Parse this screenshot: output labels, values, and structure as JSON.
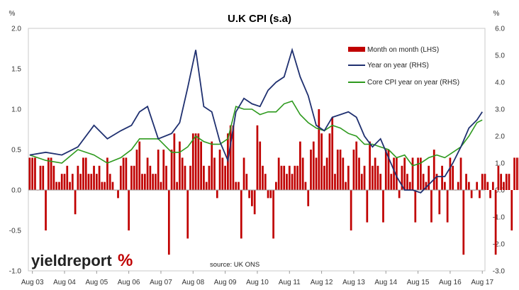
{
  "chart_data": {
    "type": "bar+line",
    "title": "U.K CPI (s.a)",
    "left_axis_unit": "%",
    "right_axis_unit": "%",
    "ylim_left": [
      -1.0,
      2.0
    ],
    "ylim_right": [
      -3.0,
      6.0
    ],
    "left_ticks": [
      "2.0",
      "1.5",
      "1.0",
      "0.5",
      "0.0",
      "-0.5",
      "-1.0"
    ],
    "right_ticks": [
      "6.0",
      "5.0",
      "4.0",
      "3.0",
      "2.0",
      "1.0",
      "0.0",
      "-1.0",
      "-2.0",
      "-3.0"
    ],
    "x_tick_labels": [
      "Aug 03",
      "Aug 04",
      "Aug 05",
      "Aug 06",
      "Aug 07",
      "Aug 08",
      "Aug 09",
      "Aug 10",
      "Aug 11",
      "Aug 12",
      "Aug 13",
      "Aug 14",
      "Aug 15",
      "Aug 16",
      "Aug 17"
    ],
    "grid": false,
    "legend_position": "top-right",
    "source": "source: UK ONS",
    "logo": {
      "text": "yieldreport",
      "symbol": "%"
    },
    "colors": {
      "bars": "#c00000",
      "yoy": "#1f3070",
      "core": "#2e9a1e"
    },
    "series": [
      {
        "name": "Month on month (LHS)",
        "type": "bar",
        "axis": "left",
        "start": "2003-07",
        "values": [
          0.4,
          0.4,
          0.4,
          0.0,
          0.3,
          0.3,
          -0.5,
          0.4,
          0.4,
          0.3,
          0.1,
          0.1,
          0.2,
          0.2,
          0.3,
          0.1,
          0.2,
          -0.3,
          0.3,
          0.2,
          0.4,
          0.4,
          0.2,
          0.2,
          0.3,
          0.2,
          0.3,
          0.1,
          0.1,
          0.4,
          0.2,
          0.1,
          0.0,
          -0.1,
          0.3,
          0.4,
          0.4,
          -0.5,
          0.3,
          0.3,
          0.5,
          0.6,
          0.2,
          0.2,
          0.4,
          0.3,
          0.2,
          0.2,
          0.5,
          0.1,
          0.5,
          0.3,
          -0.8,
          0.5,
          0.7,
          0.1,
          0.6,
          0.4,
          0.3,
          -0.6,
          0.3,
          0.7,
          0.7,
          0.7,
          0.6,
          0.3,
          0.1,
          0.3,
          0.6,
          0.4,
          -0.1,
          0.5,
          0.4,
          0.3,
          0.7,
          0.8,
          0.8,
          0.1,
          0.1,
          -0.6,
          0.4,
          0.2,
          -0.1,
          -0.2,
          -0.3,
          0.8,
          0.6,
          0.3,
          0.2,
          -0.1,
          -0.1,
          -0.6,
          0.1,
          0.4,
          0.3,
          0.3,
          0.2,
          0.3,
          0.2,
          0.3,
          0.3,
          0.6,
          0.4,
          0.1,
          -0.2,
          0.5,
          0.6,
          0.4,
          1.0,
          0.7,
          0.3,
          0.4,
          0.7,
          0.9,
          0.2,
          0.5,
          0.5,
          0.4,
          0.1,
          0.3,
          -0.5,
          0.5,
          0.6,
          0.4,
          0.2,
          0.3,
          -0.4,
          0.6,
          0.3,
          0.4,
          0.3,
          0.2,
          -0.4,
          0.5,
          0.5,
          0.2,
          0.4,
          0.4,
          -0.1,
          0.3,
          0.4,
          0.2,
          0.1,
          0.4,
          -0.4,
          0.4,
          0.4,
          0.2,
          0.1,
          0.3,
          -0.4,
          0.5,
          0.2,
          -0.3,
          0.3,
          0.1,
          -0.4,
          0.4,
          0.3,
          0.0,
          0.1,
          0.4,
          -0.8,
          0.2,
          0.1,
          -0.1,
          0.0,
          0.1,
          -0.1,
          0.2,
          0.2,
          0.1,
          -0.1,
          0.1,
          -0.8,
          0.3,
          0.2,
          0.1,
          0.2,
          0.2,
          -0.5,
          0.4,
          0.4,
          0.4,
          0.4,
          0.4,
          0.2,
          -0.1,
          0.6
        ]
      },
      {
        "name": "Year on year (RHS)",
        "type": "line",
        "axis": "right",
        "x": [
          "2003-07",
          "2004-01",
          "2004-07",
          "2005-01",
          "2005-07",
          "2005-12",
          "2006-05",
          "2006-09",
          "2006-12",
          "2007-03",
          "2007-07",
          "2007-12",
          "2008-03",
          "2008-06",
          "2008-09",
          "2008-12",
          "2009-03",
          "2009-06",
          "2009-09",
          "2009-12",
          "2010-03",
          "2010-06",
          "2010-09",
          "2010-12",
          "2011-03",
          "2011-06",
          "2011-09",
          "2011-12",
          "2012-03",
          "2012-06",
          "2012-09",
          "2012-12",
          "2013-03",
          "2013-06",
          "2013-09",
          "2013-12",
          "2014-03",
          "2014-06",
          "2014-09",
          "2014-12",
          "2015-03",
          "2015-06",
          "2015-09",
          "2015-12",
          "2016-03",
          "2016-06",
          "2016-09",
          "2016-12",
          "2017-03",
          "2017-06",
          "2017-08"
        ],
        "values": [
          1.3,
          1.4,
          1.3,
          1.6,
          2.4,
          1.9,
          2.2,
          2.4,
          2.9,
          3.1,
          1.9,
          2.1,
          2.5,
          3.8,
          5.2,
          3.1,
          2.9,
          1.8,
          1.1,
          2.9,
          3.4,
          3.2,
          3.1,
          3.7,
          4.0,
          4.2,
          5.2,
          4.2,
          3.5,
          2.4,
          2.2,
          2.7,
          2.8,
          2.9,
          2.7,
          2.0,
          1.6,
          1.9,
          1.2,
          0.5,
          0.0,
          0.0,
          -0.1,
          0.2,
          0.5,
          0.5,
          1.0,
          1.6,
          2.3,
          2.6,
          2.9
        ]
      },
      {
        "name": "Core CPI year on year (RHS)",
        "type": "line",
        "axis": "right",
        "x": [
          "2003-07",
          "2004-01",
          "2004-07",
          "2005-01",
          "2005-07",
          "2005-12",
          "2006-05",
          "2006-09",
          "2006-12",
          "2007-03",
          "2007-07",
          "2007-12",
          "2008-03",
          "2008-06",
          "2008-09",
          "2008-12",
          "2009-03",
          "2009-06",
          "2009-09",
          "2009-12",
          "2010-03",
          "2010-06",
          "2010-09",
          "2010-12",
          "2011-03",
          "2011-06",
          "2011-09",
          "2011-12",
          "2012-03",
          "2012-06",
          "2012-09",
          "2012-12",
          "2013-03",
          "2013-06",
          "2013-09",
          "2013-12",
          "2014-03",
          "2014-06",
          "2014-09",
          "2014-12",
          "2015-03",
          "2015-06",
          "2015-09",
          "2015-12",
          "2016-03",
          "2016-06",
          "2016-09",
          "2016-12",
          "2017-03",
          "2017-06",
          "2017-08"
        ],
        "values": [
          1.3,
          1.1,
          1.0,
          1.5,
          1.3,
          1.0,
          1.2,
          1.5,
          1.9,
          1.9,
          1.9,
          1.4,
          1.4,
          1.6,
          2.0,
          1.8,
          1.7,
          1.7,
          1.9,
          3.1,
          3.0,
          3.0,
          2.8,
          2.9,
          2.9,
          3.2,
          3.3,
          2.8,
          2.5,
          2.3,
          2.2,
          2.4,
          2.3,
          2.1,
          2.0,
          1.7,
          1.7,
          1.6,
          1.5,
          1.2,
          1.3,
          0.9,
          1.0,
          1.2,
          1.3,
          1.2,
          1.4,
          1.6,
          2.0,
          2.5,
          2.6
        ]
      }
    ]
  }
}
